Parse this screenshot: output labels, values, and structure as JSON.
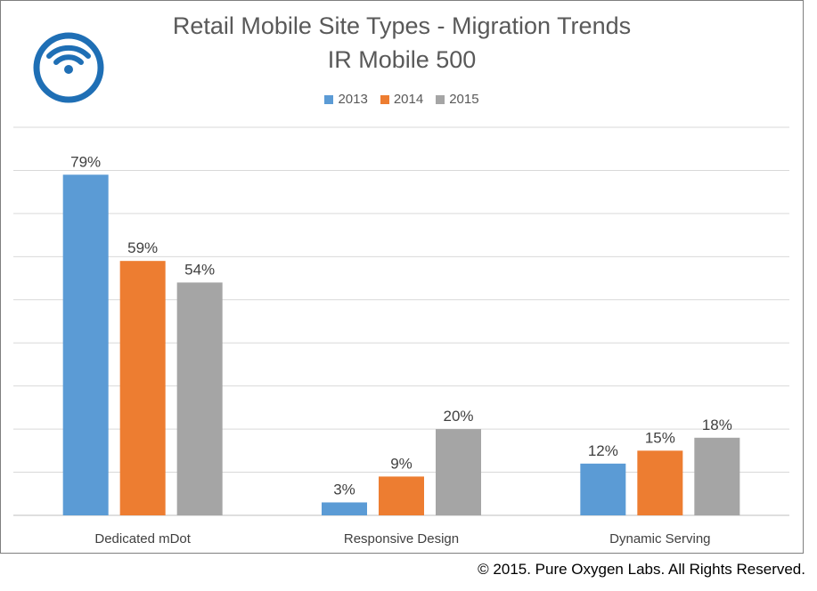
{
  "chart_data": {
    "type": "bar",
    "title": "Retail Mobile Site Types - Migration Trends",
    "subtitle": "IR Mobile 500",
    "categories": [
      "Dedicated mDot",
      "Responsive Design",
      "Dynamic Serving"
    ],
    "series": [
      {
        "name": "2013",
        "color": "#5b9bd5",
        "values": [
          79,
          3,
          12
        ],
        "labels": [
          "79%",
          "3%",
          "12%"
        ]
      },
      {
        "name": "2014",
        "color": "#ed7d31",
        "values": [
          59,
          9,
          15
        ],
        "labels": [
          "59%",
          "9%",
          "15%"
        ]
      },
      {
        "name": "2015",
        "color": "#a5a5a5",
        "values": [
          54,
          20,
          18
        ],
        "labels": [
          "54%",
          "20%",
          "18%"
        ]
      }
    ],
    "ylim": [
      0,
      90
    ],
    "y_gridline_step": 10,
    "grid": true,
    "legend_position": "top",
    "xlabel": "",
    "ylabel": ""
  },
  "logo": {
    "name": "wifi-icon",
    "color": "#1f6fb5"
  },
  "footer": {
    "copyright": "© 2015. Pure Oxygen Labs. All Rights Reserved."
  }
}
